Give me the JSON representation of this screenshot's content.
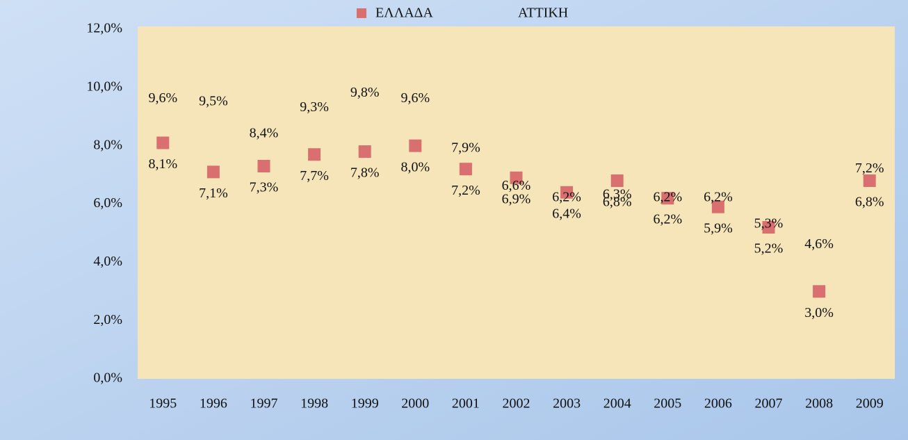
{
  "chart_data": {
    "type": "scatter",
    "categories": [
      "1995",
      "1996",
      "1997",
      "1998",
      "1999",
      "2000",
      "2001",
      "2002",
      "2003",
      "2004",
      "2005",
      "2006",
      "2007",
      "2008",
      "2009"
    ],
    "series": [
      {
        "name": "ΕΛΛΑΔΑ",
        "color": "#d9706f",
        "values": [
          8.1,
          7.1,
          7.3,
          7.7,
          7.8,
          8.0,
          7.2,
          6.9,
          6.4,
          6.8,
          6.2,
          5.9,
          5.2,
          3.0,
          6.8
        ],
        "value_labels": [
          "8,1%",
          "7,1%",
          "7,3%",
          "7,7%",
          "7,8%",
          "8,0%",
          "7,2%",
          "6,9%",
          "6,4%",
          "6,8%",
          "6,2%",
          "5,9%",
          "5,2%",
          "3,0%",
          "6,8%"
        ]
      },
      {
        "name": "ΑΤΤΙΚΗ",
        "color": "transparent",
        "values": [
          9.6,
          9.5,
          8.4,
          9.3,
          9.8,
          9.6,
          7.9,
          6.6,
          6.2,
          6.3,
          6.2,
          6.2,
          5.3,
          4.6,
          7.2
        ],
        "value_labels": [
          "9,6%",
          "9,5%",
          "8,4%",
          "9,3%",
          "9,8%",
          "9,6%",
          "7,9%",
          "6,6%",
          "6,2%",
          "6,3%",
          "6,2%",
          "6,2%",
          "5,3%",
          "4,6%",
          "7,2%"
        ]
      }
    ],
    "ylim": [
      0,
      12
    ],
    "yticks": [
      {
        "value": 0,
        "label": "0,0%"
      },
      {
        "value": 2,
        "label": "2,0%"
      },
      {
        "value": 4,
        "label": "4,0%"
      },
      {
        "value": 6,
        "label": "6,0%"
      },
      {
        "value": 8,
        "label": "8,0%"
      },
      {
        "value": 10,
        "label": "10,0%"
      },
      {
        "value": 12,
        "label": "12,0%"
      }
    ],
    "grid": false,
    "legend": "top"
  }
}
